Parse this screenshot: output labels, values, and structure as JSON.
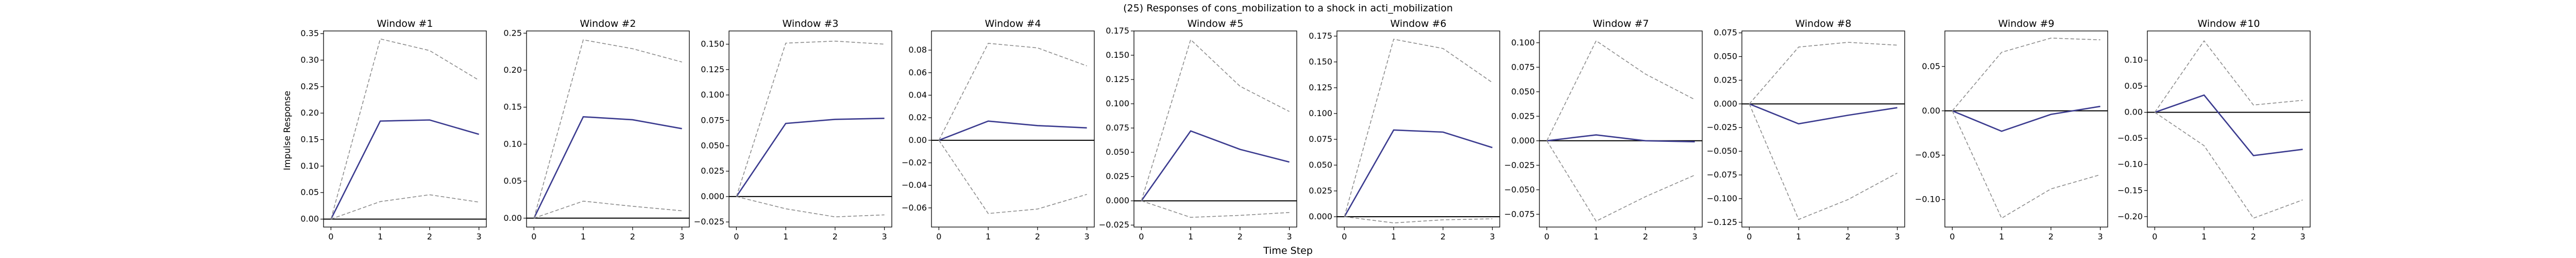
{
  "figure": {
    "suptitle": "(25) Responses of cons_mobilization to a shock in acti_mobilization",
    "xlabel": "Time Step",
    "ylabel": "Impulse Response"
  },
  "style": {
    "response_color": "#3b3b8f",
    "band_color": "#8c8c8c",
    "zero_line_color": "#000000"
  },
  "chart_data": [
    {
      "type": "line",
      "title": "Window #1",
      "x": [
        0,
        1,
        2,
        3
      ],
      "ylim": [
        -0.015,
        0.355
      ],
      "yticks": [
        0.0,
        0.05,
        0.1,
        0.15,
        0.2,
        0.25,
        0.3,
        0.35
      ],
      "yticklabels": [
        "0.00",
        "0.05",
        "0.10",
        "0.15",
        "0.20",
        "0.25",
        "0.30",
        "0.35"
      ],
      "series": [
        {
          "role": "response",
          "values": [
            0,
            0.185,
            0.187,
            0.16
          ]
        },
        {
          "role": "upper",
          "values": [
            0,
            0.34,
            0.318,
            0.262
          ]
        },
        {
          "role": "lower",
          "values": [
            0,
            0.033,
            0.046,
            0.032
          ]
        }
      ]
    },
    {
      "type": "line",
      "title": "Window #2",
      "x": [
        0,
        1,
        2,
        3
      ],
      "ylim": [
        -0.012,
        0.253
      ],
      "yticks": [
        0.0,
        0.05,
        0.1,
        0.15,
        0.2,
        0.25
      ],
      "yticklabels": [
        "0.00",
        "0.05",
        "0.10",
        "0.15",
        "0.20",
        "0.25"
      ],
      "series": [
        {
          "role": "response",
          "values": [
            0,
            0.137,
            0.133,
            0.121
          ]
        },
        {
          "role": "upper",
          "values": [
            0,
            0.241,
            0.229,
            0.211
          ]
        },
        {
          "role": "lower",
          "values": [
            0,
            0.023,
            0.016,
            0.01
          ]
        }
      ]
    },
    {
      "type": "line",
      "title": "Window #3",
      "x": [
        0,
        1,
        2,
        3
      ],
      "ylim": [
        -0.03,
        0.163
      ],
      "yticks": [
        -0.025,
        0.0,
        0.025,
        0.05,
        0.075,
        0.1,
        0.125,
        0.15
      ],
      "yticklabels": [
        "−0.025",
        "0.000",
        "0.025",
        "0.050",
        "0.075",
        "0.100",
        "0.125",
        "0.150"
      ],
      "series": [
        {
          "role": "response",
          "values": [
            0,
            0.072,
            0.076,
            0.077
          ]
        },
        {
          "role": "upper",
          "values": [
            0,
            0.151,
            0.153,
            0.15
          ]
        },
        {
          "role": "lower",
          "values": [
            0,
            -0.012,
            -0.02,
            -0.018
          ]
        }
      ]
    },
    {
      "type": "line",
      "title": "Window #4",
      "x": [
        0,
        1,
        2,
        3
      ],
      "ylim": [
        -0.077,
        0.097
      ],
      "yticks": [
        -0.06,
        -0.04,
        -0.02,
        0.0,
        0.02,
        0.04,
        0.06,
        0.08
      ],
      "yticklabels": [
        "−0.06",
        "−0.04",
        "−0.02",
        "0.00",
        "0.02",
        "0.04",
        "0.06",
        "0.08"
      ],
      "series": [
        {
          "role": "response",
          "values": [
            0,
            0.017,
            0.013,
            0.011
          ]
        },
        {
          "role": "upper",
          "values": [
            0,
            0.086,
            0.082,
            0.066
          ]
        },
        {
          "role": "lower",
          "values": [
            0,
            -0.065,
            -0.061,
            -0.048
          ]
        }
      ]
    },
    {
      "type": "line",
      "title": "Window #5",
      "x": [
        0,
        1,
        2,
        3
      ],
      "ylim": [
        -0.027,
        0.175
      ],
      "yticks": [
        -0.025,
        0.0,
        0.025,
        0.05,
        0.075,
        0.1,
        0.125,
        0.15,
        0.175
      ],
      "yticklabels": [
        "−0.025",
        "0.000",
        "0.025",
        "0.050",
        "0.075",
        "0.100",
        "0.125",
        "0.150",
        "0.175"
      ],
      "series": [
        {
          "role": "response",
          "values": [
            0,
            0.072,
            0.053,
            0.04
          ]
        },
        {
          "role": "upper",
          "values": [
            0,
            0.166,
            0.118,
            0.092
          ]
        },
        {
          "role": "lower",
          "values": [
            0,
            -0.017,
            -0.015,
            -0.012
          ]
        }
      ]
    },
    {
      "type": "line",
      "title": "Window #6",
      "x": [
        0,
        1,
        2,
        3
      ],
      "ylim": [
        -0.01,
        0.18
      ],
      "yticks": [
        0.0,
        0.025,
        0.05,
        0.075,
        0.1,
        0.125,
        0.15,
        0.175
      ],
      "yticklabels": [
        "0.000",
        "0.025",
        "0.050",
        "0.075",
        "0.100",
        "0.125",
        "0.150",
        "0.175"
      ],
      "series": [
        {
          "role": "response",
          "values": [
            0,
            0.084,
            0.082,
            0.067
          ]
        },
        {
          "role": "upper",
          "values": [
            0,
            0.172,
            0.163,
            0.13
          ]
        },
        {
          "role": "lower",
          "values": [
            0,
            -0.006,
            -0.003,
            -0.002
          ]
        }
      ]
    },
    {
      "type": "line",
      "title": "Window #7",
      "x": [
        0,
        1,
        2,
        3
      ],
      "ylim": [
        -0.088,
        0.112
      ],
      "yticks": [
        -0.075,
        -0.05,
        -0.025,
        0.0,
        0.025,
        0.05,
        0.075,
        0.1
      ],
      "yticklabels": [
        "−0.075",
        "−0.050",
        "−0.025",
        "0.000",
        "0.025",
        "0.050",
        "0.075",
        "0.100"
      ],
      "series": [
        {
          "role": "response",
          "values": [
            0,
            0.006,
            0.0,
            -0.001
          ]
        },
        {
          "role": "upper",
          "values": [
            0,
            0.102,
            0.068,
            0.042
          ]
        },
        {
          "role": "lower",
          "values": [
            0,
            -0.082,
            -0.057,
            -0.035
          ]
        }
      ]
    },
    {
      "type": "line",
      "title": "Window #8",
      "x": [
        0,
        1,
        2,
        3
      ],
      "ylim": [
        -0.13,
        0.077
      ],
      "yticks": [
        -0.125,
        -0.1,
        -0.075,
        -0.05,
        -0.025,
        0.0,
        0.025,
        0.05,
        0.075
      ],
      "yticklabels": [
        "−0.125",
        "−0.100",
        "−0.075",
        "−0.050",
        "−0.025",
        "0.000",
        "0.025",
        "0.050",
        "0.075"
      ],
      "series": [
        {
          "role": "response",
          "values": [
            0,
            -0.021,
            -0.012,
            -0.004
          ]
        },
        {
          "role": "upper",
          "values": [
            0,
            0.06,
            0.065,
            0.062
          ]
        },
        {
          "role": "lower",
          "values": [
            0,
            -0.122,
            -0.101,
            -0.073
          ]
        }
      ]
    },
    {
      "type": "line",
      "title": "Window #9",
      "x": [
        0,
        1,
        2,
        3
      ],
      "ylim": [
        -0.131,
        0.09
      ],
      "yticks": [
        -0.1,
        -0.05,
        0.0,
        0.05
      ],
      "yticklabels": [
        "−0.10",
        "−0.05",
        "0.00",
        "0.05"
      ],
      "series": [
        {
          "role": "response",
          "values": [
            0,
            -0.023,
            -0.004,
            0.005
          ]
        },
        {
          "role": "upper",
          "values": [
            0,
            0.066,
            0.082,
            0.08
          ]
        },
        {
          "role": "lower",
          "values": [
            0,
            -0.121,
            -0.088,
            -0.072
          ]
        }
      ]
    },
    {
      "type": "line",
      "title": "Window #10",
      "x": [
        0,
        1,
        2,
        3
      ],
      "ylim": [
        -0.22,
        0.156
      ],
      "yticks": [
        -0.2,
        -0.15,
        -0.1,
        -0.05,
        0.0,
        0.05,
        0.1
      ],
      "yticklabels": [
        "−0.20",
        "−0.15",
        "−0.10",
        "−0.05",
        "0.00",
        "0.05",
        "0.10"
      ],
      "series": [
        {
          "role": "response",
          "values": [
            0,
            0.033,
            -0.083,
            -0.071
          ]
        },
        {
          "role": "upper",
          "values": [
            0,
            0.137,
            0.014,
            0.023
          ]
        },
        {
          "role": "lower",
          "values": [
            0,
            -0.064,
            -0.203,
            -0.168
          ]
        }
      ]
    }
  ]
}
